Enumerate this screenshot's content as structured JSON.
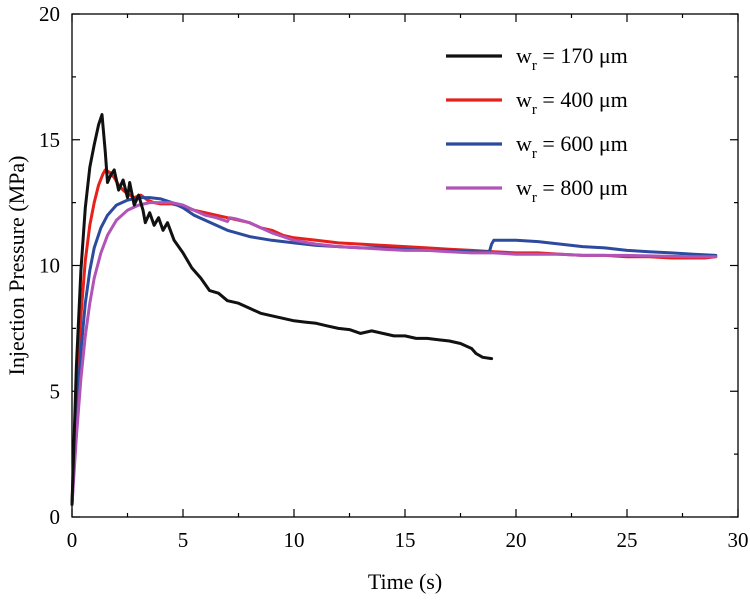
{
  "chart_data": {
    "type": "line",
    "title": "",
    "xlabel": "Time (s)",
    "ylabel": "Injection Pressure (MPa)",
    "xlim": [
      0,
      30
    ],
    "ylim": [
      0,
      20
    ],
    "xticks": [
      0,
      5,
      10,
      15,
      20,
      25,
      30
    ],
    "yticks": [
      0,
      5,
      10,
      15,
      20
    ],
    "xtick_labels": [
      "0",
      "5",
      "10",
      "15",
      "20",
      "25",
      "30"
    ],
    "ytick_labels": [
      "0",
      "5",
      "10",
      "15",
      "20"
    ],
    "grid": false,
    "legend_position": "top-right",
    "series": [
      {
        "name": "170 μm",
        "legend_prefix": "w",
        "legend_subscript": "r",
        "legend_eq": " = ",
        "color": "#111111",
        "x": [
          0,
          0.2,
          0.4,
          0.6,
          0.8,
          1.0,
          1.2,
          1.35,
          1.5,
          1.6,
          1.75,
          1.9,
          2.0,
          2.1,
          2.3,
          2.5,
          2.6,
          2.8,
          3.0,
          3.2,
          3.3,
          3.5,
          3.7,
          3.9,
          4.1,
          4.3,
          4.6,
          5.0,
          5.4,
          5.8,
          6.2,
          6.6,
          7.0,
          7.5,
          8.0,
          8.5,
          9.0,
          9.5,
          10.0,
          10.5,
          11.0,
          11.5,
          12.0,
          12.5,
          13.0,
          13.5,
          14.0,
          14.5,
          15.0,
          15.5,
          16.0,
          16.5,
          17.0,
          17.5,
          18.0,
          18.2,
          18.5,
          18.9
        ],
        "y": [
          0.5,
          6.0,
          9.8,
          12.3,
          13.9,
          14.8,
          15.6,
          16.0,
          14.5,
          13.3,
          13.6,
          13.8,
          13.4,
          13.0,
          13.4,
          12.7,
          13.3,
          12.4,
          12.8,
          12.2,
          11.7,
          12.1,
          11.6,
          11.9,
          11.4,
          11.7,
          11.0,
          10.5,
          9.9,
          9.5,
          9.0,
          8.9,
          8.6,
          8.5,
          8.3,
          8.1,
          8.0,
          7.9,
          7.8,
          7.75,
          7.7,
          7.6,
          7.5,
          7.45,
          7.3,
          7.4,
          7.3,
          7.2,
          7.2,
          7.1,
          7.1,
          7.05,
          7.0,
          6.9,
          6.7,
          6.5,
          6.35,
          6.3
        ]
      },
      {
        "name": "400 μm",
        "legend_prefix": "w",
        "legend_subscript": "r",
        "legend_eq": " = ",
        "color": "#e8201c",
        "x": [
          0,
          0.2,
          0.4,
          0.6,
          0.8,
          1.0,
          1.2,
          1.4,
          1.5,
          1.7,
          1.9,
          2.1,
          2.3,
          2.5,
          2.8,
          3.1,
          3.4,
          3.7,
          4.0,
          4.5,
          5.0,
          5.5,
          6.0,
          6.5,
          7.0,
          7.5,
          8.0,
          8.5,
          9.0,
          9.5,
          10.0,
          11.0,
          12.0,
          13.0,
          14.0,
          15.0,
          16.0,
          17.0,
          18.0,
          19.0,
          20.0,
          21.0,
          22.0,
          23.0,
          24.0,
          25.0,
          26.0,
          27.0,
          28.0,
          28.5,
          29.0
        ],
        "y": [
          0.5,
          5.0,
          8.0,
          10.2,
          11.6,
          12.5,
          13.2,
          13.65,
          13.8,
          13.7,
          13.5,
          13.2,
          13.0,
          12.85,
          12.7,
          12.8,
          12.6,
          12.5,
          12.45,
          12.45,
          12.35,
          12.2,
          12.1,
          12.0,
          11.9,
          11.8,
          11.7,
          11.5,
          11.4,
          11.2,
          11.1,
          11.0,
          10.9,
          10.85,
          10.8,
          10.75,
          10.7,
          10.65,
          10.6,
          10.55,
          10.5,
          10.5,
          10.45,
          10.4,
          10.4,
          10.35,
          10.35,
          10.3,
          10.3,
          10.3,
          10.35
        ]
      },
      {
        "name": "600 μm",
        "legend_prefix": "w",
        "legend_subscript": "r",
        "legend_eq": " = ",
        "color": "#2c4a9e",
        "x": [
          0,
          0.2,
          0.4,
          0.6,
          0.8,
          1.0,
          1.3,
          1.6,
          2.0,
          2.5,
          3.0,
          3.5,
          4.0,
          4.5,
          5.0,
          5.5,
          6.0,
          7.0,
          8.0,
          9.0,
          10.0,
          11.0,
          12.0,
          13.0,
          14.0,
          15.0,
          16.0,
          17.0,
          18.0,
          18.8,
          18.9,
          19.0,
          19.3,
          20.0,
          21.0,
          22.0,
          23.0,
          24.0,
          25.0,
          26.0,
          27.0,
          28.0,
          29.0
        ],
        "y": [
          0.5,
          4.0,
          6.6,
          8.5,
          9.8,
          10.7,
          11.5,
          12.0,
          12.4,
          12.6,
          12.7,
          12.7,
          12.65,
          12.5,
          12.3,
          12.0,
          11.8,
          11.4,
          11.15,
          11.0,
          10.9,
          10.8,
          10.75,
          10.7,
          10.7,
          10.65,
          10.6,
          10.6,
          10.55,
          10.55,
          10.85,
          11.0,
          11.0,
          11.0,
          10.95,
          10.85,
          10.75,
          10.7,
          10.6,
          10.55,
          10.5,
          10.45,
          10.4
        ]
      },
      {
        "name": "800 μm",
        "legend_prefix": "w",
        "legend_subscript": "r",
        "legend_eq": " = ",
        "color": "#b054b8",
        "x": [
          0,
          0.2,
          0.4,
          0.6,
          0.8,
          1.0,
          1.3,
          1.6,
          2.0,
          2.5,
          3.0,
          3.5,
          4.0,
          4.5,
          5.0,
          5.5,
          6.0,
          6.5,
          7.0,
          7.1,
          7.4,
          8.0,
          8.5,
          9.0,
          10.0,
          11.0,
          12.0,
          13.0,
          14.0,
          15.0,
          16.0,
          17.0,
          18.0,
          19.0,
          20.0,
          21.0,
          22.0,
          23.0,
          24.0,
          25.0,
          26.0,
          27.0,
          28.0,
          29.0
        ],
        "y": [
          0.5,
          3.2,
          5.5,
          7.2,
          8.5,
          9.5,
          10.5,
          11.2,
          11.8,
          12.2,
          12.4,
          12.5,
          12.5,
          12.5,
          12.4,
          12.2,
          12.0,
          11.9,
          11.75,
          11.9,
          11.85,
          11.7,
          11.5,
          11.3,
          11.0,
          10.85,
          10.75,
          10.7,
          10.65,
          10.6,
          10.6,
          10.55,
          10.5,
          10.5,
          10.45,
          10.45,
          10.45,
          10.4,
          10.4,
          10.4,
          10.38,
          10.36,
          10.35,
          10.35
        ]
      }
    ]
  }
}
